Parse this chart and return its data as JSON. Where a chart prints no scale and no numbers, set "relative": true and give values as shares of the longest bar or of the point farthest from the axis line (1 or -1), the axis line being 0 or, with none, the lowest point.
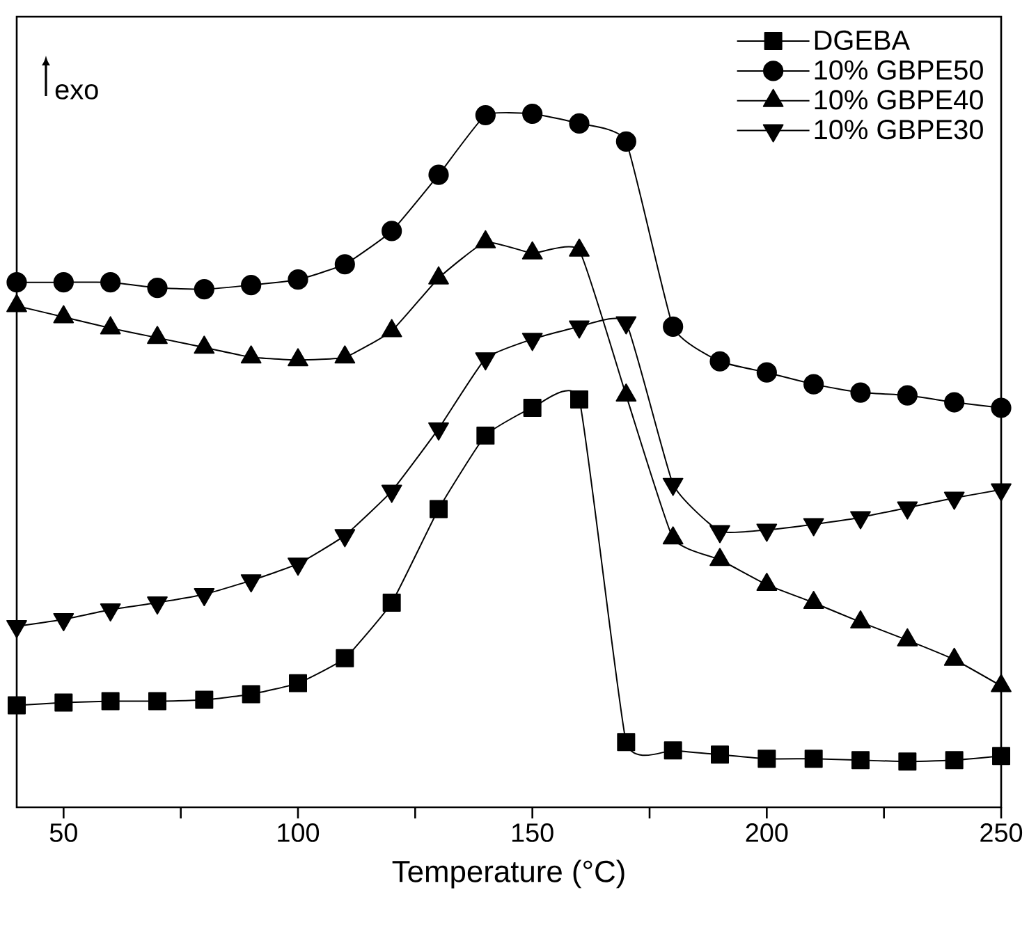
{
  "chart_data": {
    "type": "line",
    "relative": true,
    "xlabel": "Temperature (°C)",
    "annotations": [
      "exo"
    ],
    "x": [
      40,
      50,
      60,
      70,
      80,
      90,
      100,
      110,
      120,
      130,
      140,
      150,
      160,
      170,
      180,
      190,
      200,
      210,
      220,
      230,
      240,
      250
    ],
    "xlim": [
      40,
      250
    ],
    "xticks": [
      50,
      {
        "value": 75,
        "label": null
      },
      100,
      {
        "value": 125,
        "label": null
      },
      150,
      {
        "value": 175,
        "label": null
      },
      200,
      {
        "value": 225,
        "label": null
      },
      250
    ],
    "tick_labels": "x",
    "grid": false,
    "legend": "top right",
    "line_style": "solid",
    "series": [
      {
        "name": "DGEBA",
        "color": "#000000",
        "marker": "square",
        "values": [
          0.147,
          0.151,
          0.153,
          0.153,
          0.155,
          0.163,
          0.179,
          0.215,
          0.295,
          0.43,
          0.536,
          0.576,
          0.588,
          0.094,
          0.082,
          0.076,
          0.07,
          0.07,
          0.068,
          0.066,
          0.068,
          0.074
        ]
      },
      {
        "name": "10% GBPE50",
        "color": "#000000",
        "marker": "circle",
        "values": [
          0.757,
          0.757,
          0.757,
          0.749,
          0.747,
          0.753,
          0.761,
          0.783,
          0.831,
          0.912,
          0.998,
          1.0,
          0.986,
          0.96,
          0.693,
          0.643,
          0.627,
          0.61,
          0.598,
          0.594,
          0.584,
          0.576
        ]
      },
      {
        "name": "10% GBPE40",
        "color": "#000000",
        "marker": "triangle",
        "values": [
          0.723,
          0.707,
          0.691,
          0.677,
          0.663,
          0.649,
          0.645,
          0.649,
          0.687,
          0.763,
          0.815,
          0.799,
          0.803,
          0.594,
          0.388,
          0.357,
          0.321,
          0.295,
          0.267,
          0.241,
          0.213,
          0.175
        ]
      },
      {
        "name": "10% GBPE30",
        "color": "#000000",
        "marker": "triangle-down",
        "values": [
          0.261,
          0.271,
          0.285,
          0.295,
          0.307,
          0.327,
          0.351,
          0.392,
          0.456,
          0.546,
          0.647,
          0.675,
          0.693,
          0.699,
          0.466,
          0.398,
          0.4,
          0.408,
          0.418,
          0.432,
          0.446,
          0.458
        ]
      }
    ]
  }
}
